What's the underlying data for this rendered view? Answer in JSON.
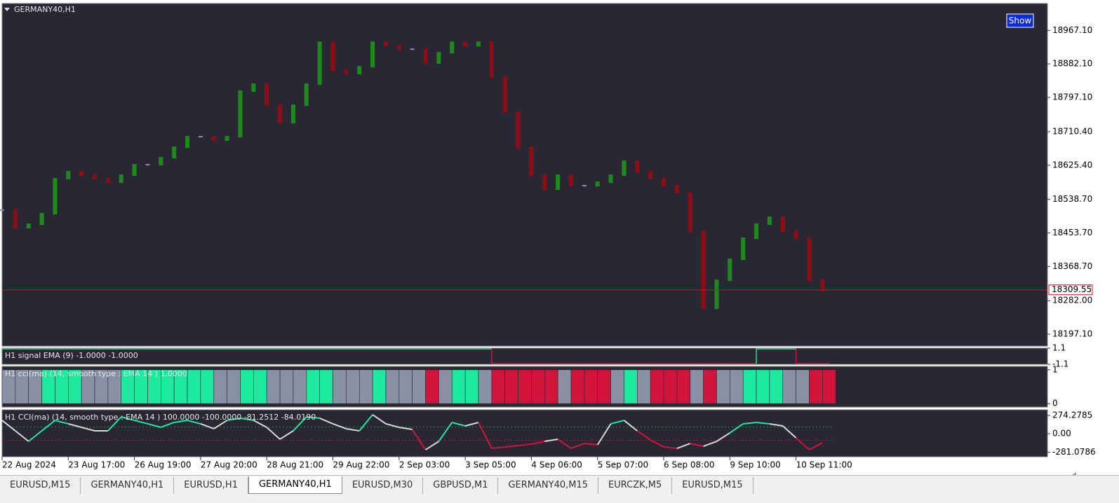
{
  "window": {
    "show_button": "Show"
  },
  "chart_data": [
    {
      "type": "bar-line",
      "title": "GERMANY40,H1",
      "x": [
        0,
        4,
        8,
        12,
        16,
        20,
        24,
        28,
        32,
        36,
        40,
        44,
        48,
        52,
        56,
        60,
        64,
        68,
        72,
        76,
        80,
        84,
        88,
        92,
        96,
        100,
        104,
        108,
        112,
        116,
        120,
        124,
        128,
        132,
        136,
        140,
        144,
        148,
        152,
        156,
        160,
        164,
        168,
        172,
        176,
        180,
        184,
        188,
        192,
        196,
        200,
        204,
        208,
        212,
        216,
        220,
        224,
        228,
        232,
        236,
        240,
        244,
        248
      ],
      "values": [
        18511.2,
        18466.8,
        18475.7,
        18502.3,
        18591.0,
        18608.7,
        18599.9,
        18591.0,
        18582.1,
        18599.9,
        18626.5,
        18626.5,
        18644.2,
        18670.8,
        18697.5,
        18697.5,
        18688.6,
        18697.5,
        18812.8,
        18830.5,
        18777.3,
        18732.9,
        18777.3,
        18830.5,
        18937.0,
        18866.0,
        18857.1,
        18874.9,
        18937.0,
        18928.1,
        18919.2,
        18919.2,
        18883.8,
        18910.4,
        18937.0,
        18928.1,
        18937.0,
        18848.3,
        18759.6,
        18670.8,
        18599.9,
        18564.4,
        18599.9,
        18573.3,
        18573.3,
        18582.1,
        18599.9,
        18635.4,
        18608.7,
        18591.0,
        18573.3,
        18555.5,
        18457.9,
        18262.7,
        18333.7,
        18387.0,
        18440.2,
        18475.7,
        18493.4,
        18457.9,
        18440.2,
        18333.7,
        18307.1
      ],
      "colors": {
        "up": "#1e8a1e",
        "down": "#8c0d16",
        "flat": "#8a93a6"
      },
      "current_price": 18309.55,
      "xlim": [
        0,
        316
      ],
      "xticks": [
        {
          "value": 0,
          "label": "22 Aug 2024"
        },
        {
          "value": 20,
          "label": "23 Aug 17:00"
        },
        {
          "value": 40,
          "label": "26 Aug 19:00"
        },
        {
          "value": 60,
          "label": "27 Aug 20:00"
        },
        {
          "value": 80,
          "label": "28 Aug 21:00"
        },
        {
          "value": 100,
          "label": "29 Aug 22:00"
        },
        {
          "value": 120,
          "label": "2 Sep 03:00"
        },
        {
          "value": 140,
          "label": "3 Sep 05:00"
        },
        {
          "value": 160,
          "label": "4 Sep 06:00"
        },
        {
          "value": 180,
          "label": "5 Sep 07:00"
        },
        {
          "value": 200,
          "label": "6 Sep 08:00"
        },
        {
          "value": 220,
          "label": "9 Sep 10:00"
        },
        {
          "value": 240,
          "label": "10 Sep 11:00"
        }
      ],
      "ylim": [
        18167,
        19035
      ],
      "yticks": [
        {
          "value": 18967.1,
          "label": "18967.10"
        },
        {
          "value": 18882.1,
          "label": "18882.10"
        },
        {
          "value": 18797.1,
          "label": "18797.10"
        },
        {
          "value": 18710.4,
          "label": "18710.40"
        },
        {
          "value": 18625.4,
          "label": "18625.40"
        },
        {
          "value": 18538.7,
          "label": "18538.70"
        },
        {
          "value": 18453.7,
          "label": "18453.70"
        },
        {
          "value": 18368.7,
          "label": "18368.70"
        },
        {
          "value": 18282,
          "label": "18282.00"
        },
        {
          "value": 18197.1,
          "label": "18197.10"
        }
      ]
    },
    {
      "type": "step",
      "title": "H1 signal EMA (9) -1.0000 -1.0000",
      "values": [
        1,
        1,
        1,
        1,
        1,
        1,
        1,
        1,
        1,
        1,
        1,
        1,
        1,
        1,
        1,
        1,
        1,
        1,
        1,
        1,
        1,
        1,
        1,
        1,
        1,
        1,
        1,
        1,
        1,
        1,
        1,
        1,
        1,
        1,
        1,
        1,
        1,
        -1,
        -1,
        -1,
        -1,
        -1,
        -1,
        -1,
        -1,
        -1,
        -1,
        -1,
        -1,
        -1,
        -1,
        -1,
        -1,
        -1,
        -1,
        -1,
        -1,
        1,
        1,
        1,
        -1,
        -1,
        -1
      ],
      "colors": {
        "up": "#26d68a",
        "down": "#d0143c"
      },
      "ylim": [
        -1.1,
        1.1
      ],
      "yticks": [
        1.1,
        -1.1
      ]
    },
    {
      "type": "histogram-state",
      "title": "H1 cci(ma)  (14, smooth type : EMA  14 ) 1.0000",
      "values": [
        1,
        1,
        1,
        1,
        1,
        1,
        1,
        1,
        1,
        1,
        1,
        1,
        1,
        1,
        1,
        1,
        1,
        1,
        1,
        1,
        1,
        1,
        1,
        1,
        1,
        1,
        1,
        1,
        1,
        1,
        1,
        1,
        1,
        1,
        1,
        1,
        1,
        1,
        1,
        1,
        1,
        1,
        1,
        1,
        1,
        1,
        1,
        1,
        1,
        1,
        1,
        1,
        1,
        1,
        1,
        1,
        1,
        1,
        1,
        1,
        1,
        1,
        1
      ],
      "colors": [
        "#8892a4",
        "#8892a4",
        "#8892a4",
        "#1de9a0",
        "#1de9a0",
        "#1de9a0",
        "#8892a4",
        "#8892a4",
        "#8892a4",
        "#1de9a0",
        "#1de9a0",
        "#1de9a0",
        "#1de9a0",
        "#1de9a0",
        "#1de9a0",
        "#1de9a0",
        "#8892a4",
        "#8892a4",
        "#1de9a0",
        "#1de9a0",
        "#8892a4",
        "#8892a4",
        "#8892a4",
        "#1de9a0",
        "#1de9a0",
        "#8892a4",
        "#8892a4",
        "#8892a4",
        "#1de9a0",
        "#8892a4",
        "#8892a4",
        "#8892a4",
        "#d0143c",
        "#8892a4",
        "#1de9a0",
        "#1de9a0",
        "#8892a4",
        "#d0143c",
        "#d0143c",
        "#d0143c",
        "#d0143c",
        "#d0143c",
        "#8892a4",
        "#d0143c",
        "#d0143c",
        "#d0143c",
        "#8892a4",
        "#1de9a0",
        "#8892a4",
        "#d0143c",
        "#d0143c",
        "#d0143c",
        "#8892a4",
        "#d0143c",
        "#8892a4",
        "#8892a4",
        "#1de9a0",
        "#1de9a0",
        "#1de9a0",
        "#8892a4",
        "#8892a4",
        "#d0143c",
        "#d0143c"
      ],
      "ylim": [
        -0.1,
        1.1
      ],
      "yticks": [
        1,
        0
      ]
    },
    {
      "type": "line",
      "title": "H1 CCI(ma)  (14, smooth type : EMA  14 ) 100.0000 -100.0000 -81.2512 -84.0190",
      "values": [
        200,
        42,
        -116,
        42,
        200,
        148,
        95,
        42,
        42,
        253,
        200,
        148,
        95,
        169,
        200,
        148,
        74,
        200,
        232,
        200,
        95,
        -84,
        42,
        253,
        232,
        148,
        74,
        42,
        285,
        148,
        95,
        63,
        -243,
        -116,
        169,
        116,
        169,
        -222,
        -200,
        -179,
        -158,
        -116,
        -84,
        -222,
        -148,
        -169,
        148,
        200,
        42,
        -95,
        -200,
        -222,
        -148,
        -190,
        -116,
        11,
        148,
        169,
        148,
        116,
        -63,
        -243,
        -137
      ],
      "levels": [
        100,
        -100
      ],
      "level_colors": [
        "#2e8b3e",
        "#b0202a"
      ],
      "ylim": [
        -348,
        358.6
      ],
      "yticks": [
        274.2785,
        {
          "value": 0,
          "label": "0.00"
        },
        -281.0786
      ]
    }
  ],
  "tabs": [
    "EURUSD,M15",
    "GERMANY40,H1",
    "EURUSD,H1",
    "GERMANY40,H1",
    "EURUSD,M30",
    "GBPUSD,M1",
    "GERMANY40,M15",
    "EURCZK,M5",
    "EURUSD,M15"
  ],
  "active_tab": 3
}
